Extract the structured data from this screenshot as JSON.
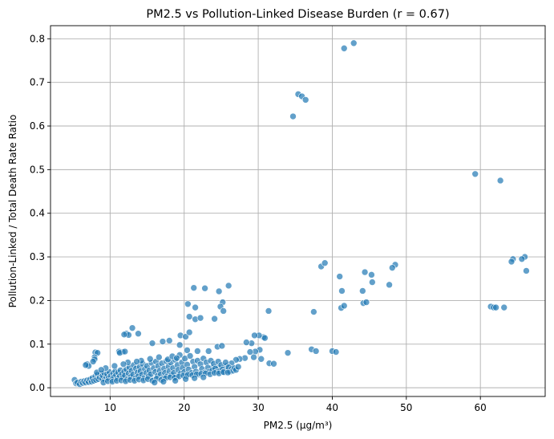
{
  "chart_data": {
    "type": "scatter",
    "title": "PM2.5 vs Pollution-Linked Disease Burden (r = 0.67)",
    "xlabel": "PM2.5 (µg/m³)",
    "ylabel": "Pollution-Linked / Total Death Rate Ratio",
    "xlim": [
      1.95,
      68.75
    ],
    "ylim": [
      -0.02,
      0.83
    ],
    "xticks": [
      10,
      20,
      30,
      40,
      50,
      60
    ],
    "yticks": [
      0.0,
      0.1,
      0.2,
      0.3,
      0.4,
      0.5,
      0.6,
      0.7,
      0.8
    ],
    "xtick_labels": [
      "10",
      "20",
      "30",
      "40",
      "50",
      "60"
    ],
    "ytick_labels": [
      "0.0",
      "0.1",
      "0.2",
      "0.3",
      "0.4",
      "0.5",
      "0.6",
      "0.7",
      "0.8"
    ],
    "grid": true,
    "color": "#1f77b4",
    "points": [
      [
        42.9,
        0.79
      ],
      [
        41.6,
        0.778
      ],
      [
        35.4,
        0.673
      ],
      [
        35.9,
        0.668
      ],
      [
        36.4,
        0.66
      ],
      [
        34.7,
        0.622
      ],
      [
        59.3,
        0.49
      ],
      [
        62.7,
        0.475
      ],
      [
        66.0,
        0.3
      ],
      [
        64.4,
        0.295
      ],
      [
        64.2,
        0.289
      ],
      [
        65.6,
        0.295
      ],
      [
        66.2,
        0.268
      ],
      [
        38.5,
        0.278
      ],
      [
        39.0,
        0.286
      ],
      [
        48.5,
        0.282
      ],
      [
        48.1,
        0.275
      ],
      [
        44.4,
        0.265
      ],
      [
        45.3,
        0.259
      ],
      [
        41.0,
        0.255
      ],
      [
        45.4,
        0.242
      ],
      [
        47.7,
        0.236
      ],
      [
        44.1,
        0.222
      ],
      [
        41.3,
        0.222
      ],
      [
        37.5,
        0.174
      ],
      [
        44.2,
        0.194
      ],
      [
        44.6,
        0.196
      ],
      [
        41.2,
        0.183
      ],
      [
        41.6,
        0.188
      ],
      [
        61.4,
        0.186
      ],
      [
        61.8,
        0.184
      ],
      [
        62.1,
        0.184
      ],
      [
        63.2,
        0.184
      ],
      [
        40.0,
        0.084
      ],
      [
        40.5,
        0.082
      ],
      [
        37.2,
        0.088
      ],
      [
        37.8,
        0.084
      ],
      [
        34.0,
        0.08
      ],
      [
        21.3,
        0.229
      ],
      [
        22.8,
        0.228
      ],
      [
        24.7,
        0.221
      ],
      [
        26.0,
        0.234
      ],
      [
        25.2,
        0.196
      ],
      [
        24.9,
        0.186
      ],
      [
        25.3,
        0.176
      ],
      [
        21.5,
        0.184
      ],
      [
        20.5,
        0.192
      ],
      [
        20.7,
        0.163
      ],
      [
        21.5,
        0.157
      ],
      [
        22.2,
        0.16
      ],
      [
        24.1,
        0.158
      ],
      [
        31.4,
        0.176
      ],
      [
        30.7,
        0.116
      ],
      [
        30.9,
        0.114
      ],
      [
        30.1,
        0.12
      ],
      [
        29.5,
        0.12
      ],
      [
        29.1,
        0.102
      ],
      [
        28.4,
        0.104
      ],
      [
        30.2,
        0.087
      ],
      [
        29.6,
        0.083
      ],
      [
        28.9,
        0.082
      ],
      [
        28.2,
        0.068
      ],
      [
        27.5,
        0.066
      ],
      [
        27.0,
        0.064
      ],
      [
        26.4,
        0.056
      ],
      [
        25.7,
        0.05
      ],
      [
        24.6,
        0.047
      ],
      [
        23.8,
        0.046
      ],
      [
        31.5,
        0.056
      ],
      [
        32.1,
        0.055
      ],
      [
        29.4,
        0.07
      ],
      [
        30.4,
        0.066
      ],
      [
        13.0,
        0.137
      ],
      [
        13.8,
        0.124
      ],
      [
        12.2,
        0.124
      ],
      [
        12.5,
        0.121
      ],
      [
        11.9,
        0.122
      ],
      [
        11.7,
        0.082
      ],
      [
        11.2,
        0.083
      ],
      [
        11.3,
        0.08
      ],
      [
        12.0,
        0.083
      ],
      [
        8.0,
        0.081
      ],
      [
        8.3,
        0.08
      ],
      [
        15.7,
        0.102
      ],
      [
        17.1,
        0.106
      ],
      [
        18.0,
        0.108
      ],
      [
        19.5,
        0.12
      ],
      [
        20.2,
        0.117
      ],
      [
        20.7,
        0.127
      ],
      [
        19.4,
        0.098
      ],
      [
        20.4,
        0.086
      ],
      [
        21.8,
        0.084
      ],
      [
        23.3,
        0.084
      ],
      [
        24.5,
        0.094
      ],
      [
        25.1,
        0.096
      ],
      [
        7.9,
        0.07
      ],
      [
        7.9,
        0.065
      ],
      [
        7.7,
        0.06
      ],
      [
        6.9,
        0.054
      ],
      [
        7.1,
        0.05
      ],
      [
        6.7,
        0.052
      ],
      [
        5.2,
        0.018
      ],
      [
        5.4,
        0.01
      ],
      [
        5.6,
        0.012
      ],
      [
        5.9,
        0.008
      ],
      [
        6.1,
        0.014
      ],
      [
        6.3,
        0.011
      ],
      [
        6.5,
        0.015
      ],
      [
        6.7,
        0.012
      ],
      [
        6.9,
        0.017
      ],
      [
        7.1,
        0.013
      ],
      [
        7.3,
        0.019
      ],
      [
        7.5,
        0.014
      ],
      [
        7.6,
        0.022
      ],
      [
        7.8,
        0.016
      ],
      [
        8.0,
        0.026
      ],
      [
        8.1,
        0.018
      ],
      [
        8.3,
        0.03
      ],
      [
        8.4,
        0.02
      ],
      [
        8.6,
        0.024
      ],
      [
        8.7,
        0.032
      ],
      [
        8.9,
        0.021
      ],
      [
        9.0,
        0.028
      ],
      [
        9.2,
        0.034
      ],
      [
        9.3,
        0.019
      ],
      [
        9.5,
        0.025
      ],
      [
        9.6,
        0.031
      ],
      [
        9.8,
        0.022
      ],
      [
        9.9,
        0.036
      ],
      [
        10.1,
        0.027
      ],
      [
        10.2,
        0.018
      ],
      [
        10.4,
        0.033
      ],
      [
        10.5,
        0.024
      ],
      [
        10.7,
        0.038
      ],
      [
        10.8,
        0.029
      ],
      [
        11.0,
        0.021
      ],
      [
        11.1,
        0.035
      ],
      [
        11.3,
        0.026
      ],
      [
        11.4,
        0.04
      ],
      [
        11.6,
        0.031
      ],
      [
        11.7,
        0.023
      ],
      [
        11.9,
        0.037
      ],
      [
        12.0,
        0.028
      ],
      [
        12.2,
        0.042
      ],
      [
        12.3,
        0.019
      ],
      [
        12.5,
        0.033
      ],
      [
        12.6,
        0.047
      ],
      [
        12.8,
        0.025
      ],
      [
        12.9,
        0.039
      ],
      [
        13.1,
        0.03
      ],
      [
        13.2,
        0.052
      ],
      [
        13.4,
        0.021
      ],
      [
        13.5,
        0.044
      ],
      [
        13.7,
        0.035
      ],
      [
        13.8,
        0.026
      ],
      [
        14.0,
        0.048
      ],
      [
        14.1,
        0.038
      ],
      [
        14.3,
        0.03
      ],
      [
        14.4,
        0.055
      ],
      [
        14.6,
        0.022
      ],
      [
        14.7,
        0.043
      ],
      [
        14.9,
        0.034
      ],
      [
        15.0,
        0.05
      ],
      [
        15.2,
        0.026
      ],
      [
        15.3,
        0.04
      ],
      [
        15.5,
        0.031
      ],
      [
        15.6,
        0.057
      ],
      [
        15.8,
        0.018
      ],
      [
        15.9,
        0.045
      ],
      [
        16.1,
        0.036
      ],
      [
        16.2,
        0.06
      ],
      [
        16.4,
        0.027
      ],
      [
        16.5,
        0.05
      ],
      [
        16.7,
        0.039
      ],
      [
        16.8,
        0.03
      ],
      [
        17.0,
        0.056
      ],
      [
        17.1,
        0.021
      ],
      [
        17.3,
        0.044
      ],
      [
        17.4,
        0.034
      ],
      [
        17.6,
        0.061
      ],
      [
        17.7,
        0.026
      ],
      [
        17.9,
        0.049
      ],
      [
        18.0,
        0.038
      ],
      [
        18.2,
        0.058
      ],
      [
        18.3,
        0.029
      ],
      [
        18.5,
        0.045
      ],
      [
        18.6,
        0.034
      ],
      [
        18.8,
        0.064
      ],
      [
        18.9,
        0.024
      ],
      [
        19.1,
        0.052
      ],
      [
        19.2,
        0.041
      ],
      [
        19.4,
        0.075
      ],
      [
        19.5,
        0.032
      ],
      [
        19.7,
        0.058
      ],
      [
        19.8,
        0.046
      ],
      [
        20.0,
        0.036
      ],
      [
        20.1,
        0.067
      ],
      [
        20.3,
        0.027
      ],
      [
        20.4,
        0.053
      ],
      [
        20.6,
        0.042
      ],
      [
        20.8,
        0.073
      ],
      [
        21.0,
        0.034
      ],
      [
        21.2,
        0.06
      ],
      [
        21.4,
        0.048
      ],
      [
        21.6,
        0.037
      ],
      [
        21.8,
        0.062
      ],
      [
        22.0,
        0.03
      ],
      [
        22.2,
        0.054
      ],
      [
        22.4,
        0.043
      ],
      [
        22.6,
        0.067
      ],
      [
        22.8,
        0.035
      ],
      [
        23.0,
        0.058
      ],
      [
        23.2,
        0.046
      ],
      [
        23.4,
        0.037
      ],
      [
        23.6,
        0.062
      ],
      [
        23.8,
        0.04
      ],
      [
        24.0,
        0.055
      ],
      [
        24.2,
        0.044
      ],
      [
        24.4,
        0.036
      ],
      [
        24.6,
        0.06
      ],
      [
        24.8,
        0.038
      ],
      [
        25.0,
        0.052
      ],
      [
        25.2,
        0.042
      ],
      [
        25.4,
        0.035
      ],
      [
        25.6,
        0.058
      ],
      [
        25.8,
        0.04
      ],
      [
        26.0,
        0.047
      ],
      [
        26.2,
        0.037
      ],
      [
        26.4,
        0.043
      ],
      [
        26.6,
        0.039
      ],
      [
        26.8,
        0.045
      ],
      [
        27.0,
        0.041
      ],
      [
        27.3,
        0.048
      ],
      [
        8.2,
        0.035
      ],
      [
        9.1,
        0.012
      ],
      [
        9.7,
        0.015
      ],
      [
        10.3,
        0.014
      ],
      [
        10.9,
        0.016
      ],
      [
        11.5,
        0.017
      ],
      [
        12.1,
        0.015
      ],
      [
        12.7,
        0.018
      ],
      [
        13.3,
        0.016
      ],
      [
        13.9,
        0.019
      ],
      [
        14.5,
        0.017
      ],
      [
        15.1,
        0.02
      ],
      [
        15.7,
        0.016
      ],
      [
        16.3,
        0.021
      ],
      [
        16.9,
        0.018
      ],
      [
        17.5,
        0.022
      ],
      [
        18.1,
        0.024
      ],
      [
        18.7,
        0.023
      ],
      [
        19.3,
        0.026
      ],
      [
        19.9,
        0.028
      ],
      [
        20.5,
        0.03
      ],
      [
        21.1,
        0.029
      ],
      [
        21.7,
        0.031
      ],
      [
        22.3,
        0.032
      ],
      [
        22.9,
        0.033
      ],
      [
        23.5,
        0.031
      ],
      [
        24.1,
        0.034
      ],
      [
        24.7,
        0.033
      ],
      [
        25.3,
        0.036
      ],
      [
        25.9,
        0.035
      ],
      [
        14.2,
        0.062
      ],
      [
        15.4,
        0.066
      ],
      [
        16.6,
        0.07
      ],
      [
        17.8,
        0.065
      ],
      [
        18.4,
        0.072
      ],
      [
        19.0,
        0.068
      ],
      [
        12.4,
        0.058
      ],
      [
        13.6,
        0.06
      ],
      [
        11.8,
        0.054
      ],
      [
        10.6,
        0.05
      ],
      [
        9.4,
        0.045
      ],
      [
        8.8,
        0.041
      ],
      [
        16.0,
        0.012
      ],
      [
        17.2,
        0.014
      ],
      [
        18.8,
        0.016
      ],
      [
        20.2,
        0.02
      ],
      [
        21.4,
        0.022
      ],
      [
        22.6,
        0.024
      ]
    ]
  }
}
